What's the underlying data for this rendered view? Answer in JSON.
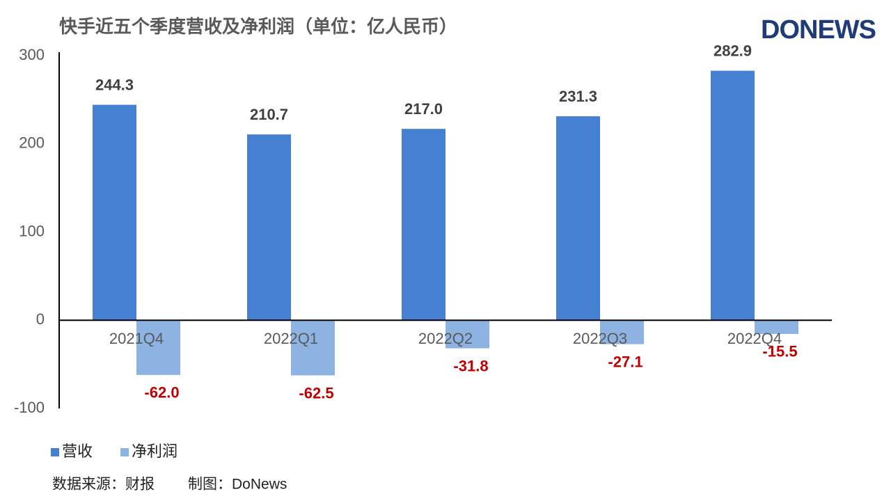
{
  "chart_data": {
    "type": "bar",
    "title": "快手近五个季度营收及净利润（单位：亿人民币）",
    "logo": "DONEWS",
    "categories": [
      "2021Q4",
      "2022Q1",
      "2022Q2",
      "2022Q3",
      "2022Q4"
    ],
    "series": [
      {
        "name": "营收",
        "color": "#4680d2",
        "label_color": "#404040",
        "values": [
          244.3,
          210.7,
          217.0,
          231.3,
          282.9
        ],
        "value_labels": [
          "244.3",
          "210.7",
          "217.0",
          "231.3",
          "282.9"
        ]
      },
      {
        "name": "净利润",
        "color": "#8db3e2",
        "label_color": "#c00000",
        "values": [
          -62.0,
          -62.5,
          -31.8,
          -27.1,
          -15.5
        ],
        "value_labels": [
          "-62.0",
          "-62.5",
          "-31.8",
          "-27.1",
          "-15.5"
        ]
      }
    ],
    "ylim": [
      -100,
      300
    ],
    "yticks": [
      300,
      200,
      100,
      0,
      -100
    ],
    "grid": false,
    "legend": "bottom-left",
    "source": "数据来源：财报",
    "credit": "制图：DoNews"
  }
}
